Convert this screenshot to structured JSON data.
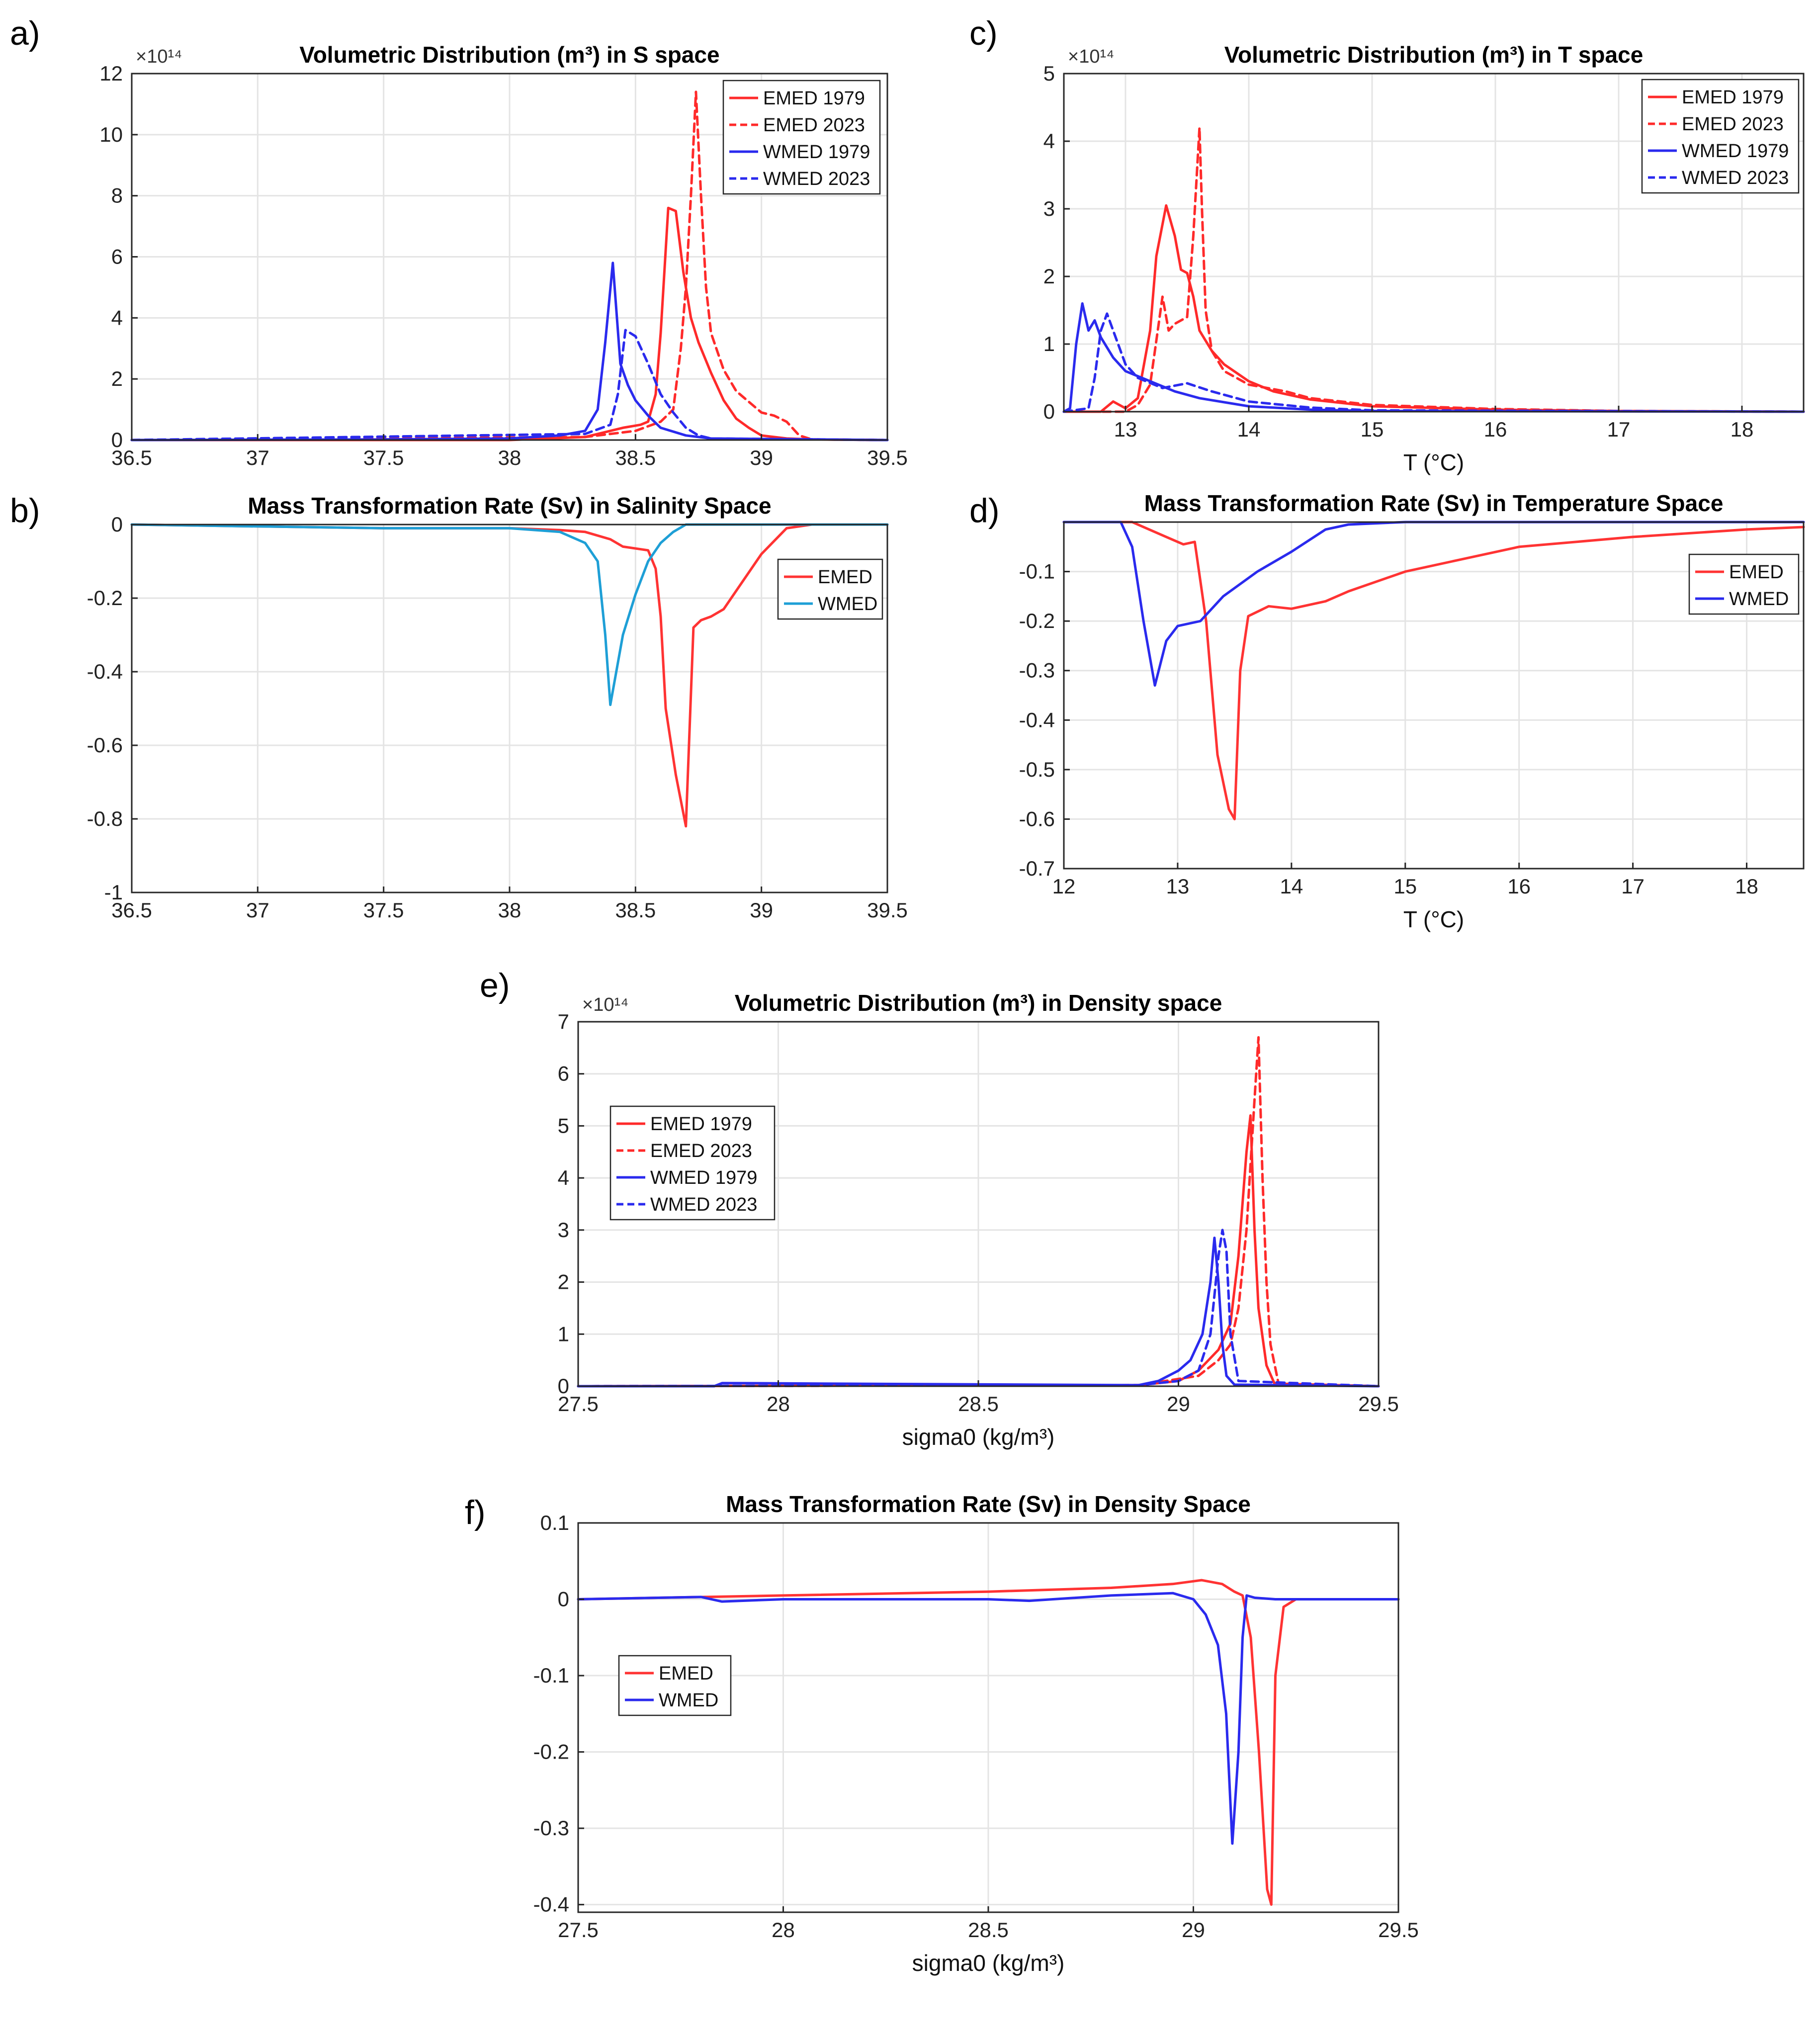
{
  "figure": {
    "panel_labels": [
      "a)",
      "b)",
      "c)",
      "d)",
      "e)",
      "f)"
    ]
  },
  "chart_data": [
    {
      "id": "a",
      "type": "line",
      "title": "Volumetric Distribution (m³) in S space",
      "xlabel": "",
      "ylabel": "",
      "y_exponent": "×10¹⁴",
      "xlim": [
        36.5,
        39.5
      ],
      "ylim": [
        0,
        12
      ],
      "xticks": [
        36.5,
        37,
        37.5,
        38,
        38.5,
        39,
        39.5
      ],
      "yticks": [
        0,
        2,
        4,
        6,
        8,
        10,
        12
      ],
      "legend": "top-right",
      "series": [
        {
          "name": "EMED 1979",
          "color": "#ff2a2a",
          "style": "solid",
          "x": [
            36.5,
            38.0,
            38.3,
            38.45,
            38.52,
            38.55,
            38.58,
            38.6,
            38.63,
            38.66,
            38.69,
            38.72,
            38.75,
            38.8,
            38.85,
            38.9,
            38.95,
            39.0,
            39.1,
            39.2,
            39.5
          ],
          "y": [
            0,
            0,
            0.1,
            0.4,
            0.5,
            0.6,
            1.5,
            3.5,
            7.6,
            7.5,
            5.5,
            4.0,
            3.2,
            2.2,
            1.3,
            0.7,
            0.4,
            0.15,
            0.05,
            0.02,
            0
          ]
        },
        {
          "name": "EMED 2023",
          "color": "#ff2a2a",
          "style": "dashed",
          "x": [
            36.5,
            38.3,
            38.5,
            38.6,
            38.65,
            38.68,
            38.7,
            38.72,
            38.74,
            38.76,
            38.78,
            38.8,
            38.85,
            38.9,
            39.0,
            39.05,
            39.1,
            39.15,
            39.2,
            39.5
          ],
          "y": [
            0,
            0.1,
            0.3,
            0.6,
            1.0,
            3.0,
            5.0,
            8.0,
            11.4,
            8.0,
            5.0,
            3.5,
            2.3,
            1.6,
            0.9,
            0.8,
            0.6,
            0.15,
            0.02,
            0
          ]
        },
        {
          "name": "WMED 1979",
          "color": "#2a2aee",
          "style": "solid",
          "x": [
            36.5,
            37.5,
            38.0,
            38.2,
            38.3,
            38.35,
            38.38,
            38.41,
            38.44,
            38.47,
            38.5,
            38.55,
            38.6,
            38.7,
            38.8,
            39.5
          ],
          "y": [
            0,
            0.02,
            0.05,
            0.15,
            0.3,
            1.0,
            3.2,
            5.8,
            2.5,
            1.8,
            1.3,
            0.8,
            0.4,
            0.15,
            0.05,
            0
          ]
        },
        {
          "name": "WMED 2023",
          "color": "#2a2aee",
          "style": "dashed",
          "x": [
            36.5,
            38.3,
            38.4,
            38.43,
            38.46,
            38.5,
            38.55,
            38.6,
            38.65,
            38.7,
            38.75,
            38.8,
            39.5
          ],
          "y": [
            0,
            0.2,
            0.5,
            1.5,
            3.6,
            3.4,
            2.5,
            1.5,
            0.9,
            0.4,
            0.15,
            0.05,
            0
          ]
        }
      ]
    },
    {
      "id": "b",
      "type": "line",
      "title": "Mass Transformation Rate (Sv) in Salinity Space",
      "xlabel": "",
      "ylabel": "",
      "xlim": [
        36.5,
        39.5
      ],
      "ylim": [
        -1,
        0
      ],
      "xticks": [
        36.5,
        37,
        37.5,
        38,
        38.5,
        39,
        39.5
      ],
      "yticks": [
        0,
        -0.2,
        -0.4,
        -0.6,
        -0.8,
        -1
      ],
      "legend": "right",
      "series": [
        {
          "name": "EMED",
          "color": "#ff3333",
          "style": "solid",
          "x": [
            36.5,
            37.5,
            38.0,
            38.2,
            38.3,
            38.4,
            38.45,
            38.55,
            38.58,
            38.6,
            38.62,
            38.66,
            38.7,
            38.73,
            38.76,
            38.8,
            38.85,
            38.9,
            39.0,
            39.1,
            39.2,
            39.5
          ],
          "y": [
            0,
            -0.01,
            -0.01,
            -0.015,
            -0.02,
            -0.04,
            -0.06,
            -0.07,
            -0.12,
            -0.25,
            -0.5,
            -0.68,
            -0.82,
            -0.28,
            -0.26,
            -0.25,
            -0.23,
            -0.18,
            -0.08,
            -0.01,
            0,
            0
          ]
        },
        {
          "name": "WMED",
          "color": "#1e9fd6",
          "style": "solid",
          "x": [
            36.5,
            37.5,
            38.0,
            38.2,
            38.3,
            38.35,
            38.38,
            38.4,
            38.45,
            38.5,
            38.55,
            38.6,
            38.65,
            38.7,
            38.75,
            39.5
          ],
          "y": [
            0,
            -0.01,
            -0.01,
            -0.02,
            -0.05,
            -0.1,
            -0.3,
            -0.49,
            -0.3,
            -0.19,
            -0.1,
            -0.05,
            -0.02,
            0,
            0,
            0
          ]
        }
      ]
    },
    {
      "id": "c",
      "type": "line",
      "title": "Volumetric Distribution (m³) in T space",
      "xlabel": "T (°C)",
      "ylabel": "",
      "y_exponent": "×10¹⁴",
      "xlim": [
        12.5,
        18.5
      ],
      "ylim": [
        0,
        5
      ],
      "xticks": [
        13,
        14,
        15,
        16,
        17,
        18
      ],
      "yticks": [
        0,
        1,
        2,
        3,
        4,
        5
      ],
      "legend": "top-right",
      "series": [
        {
          "name": "EMED 1979",
          "color": "#ff2a2a",
          "style": "solid",
          "x": [
            12.5,
            12.8,
            12.9,
            13.0,
            13.1,
            13.2,
            13.25,
            13.33,
            13.4,
            13.45,
            13.5,
            13.55,
            13.6,
            13.7,
            13.8,
            14.0,
            14.2,
            14.5,
            15.0,
            16.0,
            17.0,
            18.5
          ],
          "y": [
            0,
            0,
            0.15,
            0.05,
            0.2,
            1.2,
            2.3,
            3.05,
            2.6,
            2.1,
            2.05,
            1.7,
            1.2,
            0.9,
            0.7,
            0.45,
            0.3,
            0.18,
            0.08,
            0.03,
            0.01,
            0
          ]
        },
        {
          "name": "EMED 2023",
          "color": "#ff2a2a",
          "style": "dashed",
          "x": [
            12.5,
            13.0,
            13.1,
            13.2,
            13.3,
            13.35,
            13.4,
            13.5,
            13.55,
            13.6,
            13.62,
            13.65,
            13.7,
            13.8,
            14.0,
            14.3,
            14.5,
            15.0,
            16.0,
            17.0,
            18.5
          ],
          "y": [
            0,
            0,
            0.1,
            0.4,
            1.7,
            1.2,
            1.3,
            1.4,
            2.6,
            4.2,
            3.0,
            1.5,
            0.9,
            0.6,
            0.4,
            0.3,
            0.2,
            0.1,
            0.04,
            0.01,
            0
          ]
        },
        {
          "name": "WMED 1979",
          "color": "#2a2aee",
          "style": "solid",
          "x": [
            12.5,
            12.55,
            12.6,
            12.65,
            12.7,
            12.75,
            12.8,
            12.85,
            12.9,
            13.0,
            13.2,
            13.4,
            13.6,
            14.0,
            14.5,
            15.0,
            18.5
          ],
          "y": [
            0,
            0.05,
            1.0,
            1.6,
            1.2,
            1.35,
            1.1,
            0.95,
            0.8,
            0.6,
            0.45,
            0.3,
            0.2,
            0.08,
            0.03,
            0.01,
            0
          ]
        },
        {
          "name": "WMED 2023",
          "color": "#2a2aee",
          "style": "dashed",
          "x": [
            12.5,
            12.7,
            12.75,
            12.8,
            12.85,
            12.9,
            13.0,
            13.1,
            13.3,
            13.5,
            13.7,
            14.0,
            14.5,
            15.0,
            18.5
          ],
          "y": [
            0,
            0.05,
            0.5,
            1.2,
            1.45,
            1.2,
            0.7,
            0.5,
            0.35,
            0.42,
            0.3,
            0.15,
            0.06,
            0.02,
            0
          ]
        }
      ]
    },
    {
      "id": "d",
      "type": "line",
      "title": "Mass Transformation Rate (Sv) in Temperature Space",
      "xlabel": "T (°C)",
      "ylabel": "",
      "xlim": [
        12,
        18.5
      ],
      "ylim": [
        -0.7,
        0
      ],
      "xticks": [
        12,
        13,
        14,
        15,
        16,
        17,
        18
      ],
      "yticks": [
        -0.1,
        -0.2,
        -0.3,
        -0.4,
        -0.5,
        -0.6,
        -0.7
      ],
      "legend": "top-right",
      "series": [
        {
          "name": "EMED",
          "color": "#ff3333",
          "style": "solid",
          "x": [
            12.0,
            12.6,
            12.9,
            13.05,
            13.15,
            13.25,
            13.35,
            13.45,
            13.5,
            13.55,
            13.62,
            13.8,
            14.0,
            14.3,
            14.5,
            15.0,
            15.5,
            16.0,
            17.0,
            18.0,
            18.5
          ],
          "y": [
            0,
            0,
            -0.03,
            -0.045,
            -0.04,
            -0.2,
            -0.47,
            -0.58,
            -0.6,
            -0.3,
            -0.19,
            -0.17,
            -0.175,
            -0.16,
            -0.14,
            -0.1,
            -0.075,
            -0.05,
            -0.03,
            -0.015,
            -0.01
          ]
        },
        {
          "name": "WMED",
          "color": "#2a2aee",
          "style": "solid",
          "x": [
            12.0,
            12.5,
            12.6,
            12.7,
            12.8,
            12.9,
            13.0,
            13.2,
            13.4,
            13.7,
            14.0,
            14.3,
            14.5,
            15.0,
            16.0,
            18.5
          ],
          "y": [
            0,
            0,
            -0.05,
            -0.2,
            -0.33,
            -0.24,
            -0.21,
            -0.2,
            -0.15,
            -0.1,
            -0.06,
            -0.015,
            -0.005,
            0,
            0,
            0
          ]
        }
      ]
    },
    {
      "id": "e",
      "type": "line",
      "title": "Volumetric Distribution (m³) in Density space",
      "xlabel": "sigma0 (kg/m³)",
      "ylabel": "",
      "y_exponent": "×10¹⁴",
      "xlim": [
        27.5,
        29.5
      ],
      "ylim": [
        0,
        7
      ],
      "xticks": [
        27.5,
        28,
        28.5,
        29,
        29.5
      ],
      "yticks": [
        0,
        1,
        2,
        3,
        4,
        5,
        6,
        7
      ],
      "legend": "left",
      "series": [
        {
          "name": "EMED 1979",
          "color": "#ff2a2a",
          "style": "solid",
          "x": [
            27.5,
            28.9,
            29.0,
            29.05,
            29.1,
            29.13,
            29.15,
            29.17,
            29.18,
            29.19,
            29.2,
            29.22,
            29.24,
            29.5
          ],
          "y": [
            0,
            0.02,
            0.1,
            0.3,
            0.7,
            1.2,
            2.5,
            4.5,
            5.2,
            3.0,
            1.5,
            0.4,
            0.05,
            0
          ]
        },
        {
          "name": "EMED 2023",
          "color": "#ff2a2a",
          "style": "dashed",
          "x": [
            27.5,
            28.9,
            29.05,
            29.1,
            29.13,
            29.15,
            29.17,
            29.19,
            29.2,
            29.21,
            29.22,
            29.23,
            29.25,
            29.5
          ],
          "y": [
            0,
            0.02,
            0.2,
            0.5,
            0.8,
            1.5,
            3.0,
            5.5,
            6.7,
            4.0,
            2.0,
            0.8,
            0.05,
            0
          ]
        },
        {
          "name": "WMED 1979",
          "color": "#2a2aee",
          "style": "solid",
          "x": [
            27.5,
            27.84,
            27.86,
            28.9,
            28.95,
            29.0,
            29.03,
            29.06,
            29.08,
            29.09,
            29.1,
            29.11,
            29.12,
            29.14,
            29.5
          ],
          "y": [
            0,
            0,
            0.06,
            0.02,
            0.1,
            0.3,
            0.5,
            1.0,
            2.0,
            2.85,
            2.0,
            0.8,
            0.2,
            0.03,
            0
          ]
        },
        {
          "name": "WMED 2023",
          "color": "#2a2aee",
          "style": "dashed",
          "x": [
            27.5,
            28.9,
            29.0,
            29.05,
            29.08,
            29.1,
            29.11,
            29.12,
            29.13,
            29.15,
            29.5
          ],
          "y": [
            0,
            0.02,
            0.1,
            0.3,
            1.0,
            2.5,
            3.0,
            2.6,
            1.0,
            0.1,
            0
          ]
        }
      ]
    },
    {
      "id": "f",
      "type": "line",
      "title": "Mass Transformation Rate (Sv) in Density Space",
      "xlabel": "sigma0 (kg/m³)",
      "ylabel": "",
      "xlim": [
        27.5,
        29.5
      ],
      "ylim": [
        -0.41,
        0.1
      ],
      "xticks": [
        27.5,
        28,
        28.5,
        29,
        29.5
      ],
      "yticks": [
        0.1,
        0,
        -0.1,
        -0.2,
        -0.3,
        -0.4
      ],
      "legend": "left",
      "series": [
        {
          "name": "EMED",
          "color": "#ff3333",
          "style": "solid",
          "x": [
            27.5,
            28.0,
            28.5,
            28.8,
            28.95,
            29.02,
            29.07,
            29.1,
            29.12,
            29.14,
            29.16,
            29.18,
            29.19,
            29.2,
            29.22,
            29.25,
            29.3,
            29.5
          ],
          "y": [
            0,
            0.005,
            0.01,
            0.015,
            0.02,
            0.025,
            0.02,
            0.01,
            0.005,
            -0.05,
            -0.2,
            -0.38,
            -0.4,
            -0.1,
            -0.01,
            0,
            0,
            0
          ]
        },
        {
          "name": "WMED",
          "color": "#2a2aee",
          "style": "solid",
          "x": [
            27.5,
            27.8,
            27.85,
            28.0,
            28.5,
            28.6,
            28.8,
            28.95,
            29.0,
            29.03,
            29.06,
            29.08,
            29.095,
            29.11,
            29.12,
            29.13,
            29.15,
            29.2,
            29.5
          ],
          "y": [
            0,
            0.003,
            -0.003,
            0.0,
            0.0,
            -0.002,
            0.005,
            0.008,
            0.0,
            -0.02,
            -0.06,
            -0.15,
            -0.32,
            -0.2,
            -0.05,
            0.005,
            0.002,
            0,
            0
          ]
        }
      ]
    }
  ]
}
